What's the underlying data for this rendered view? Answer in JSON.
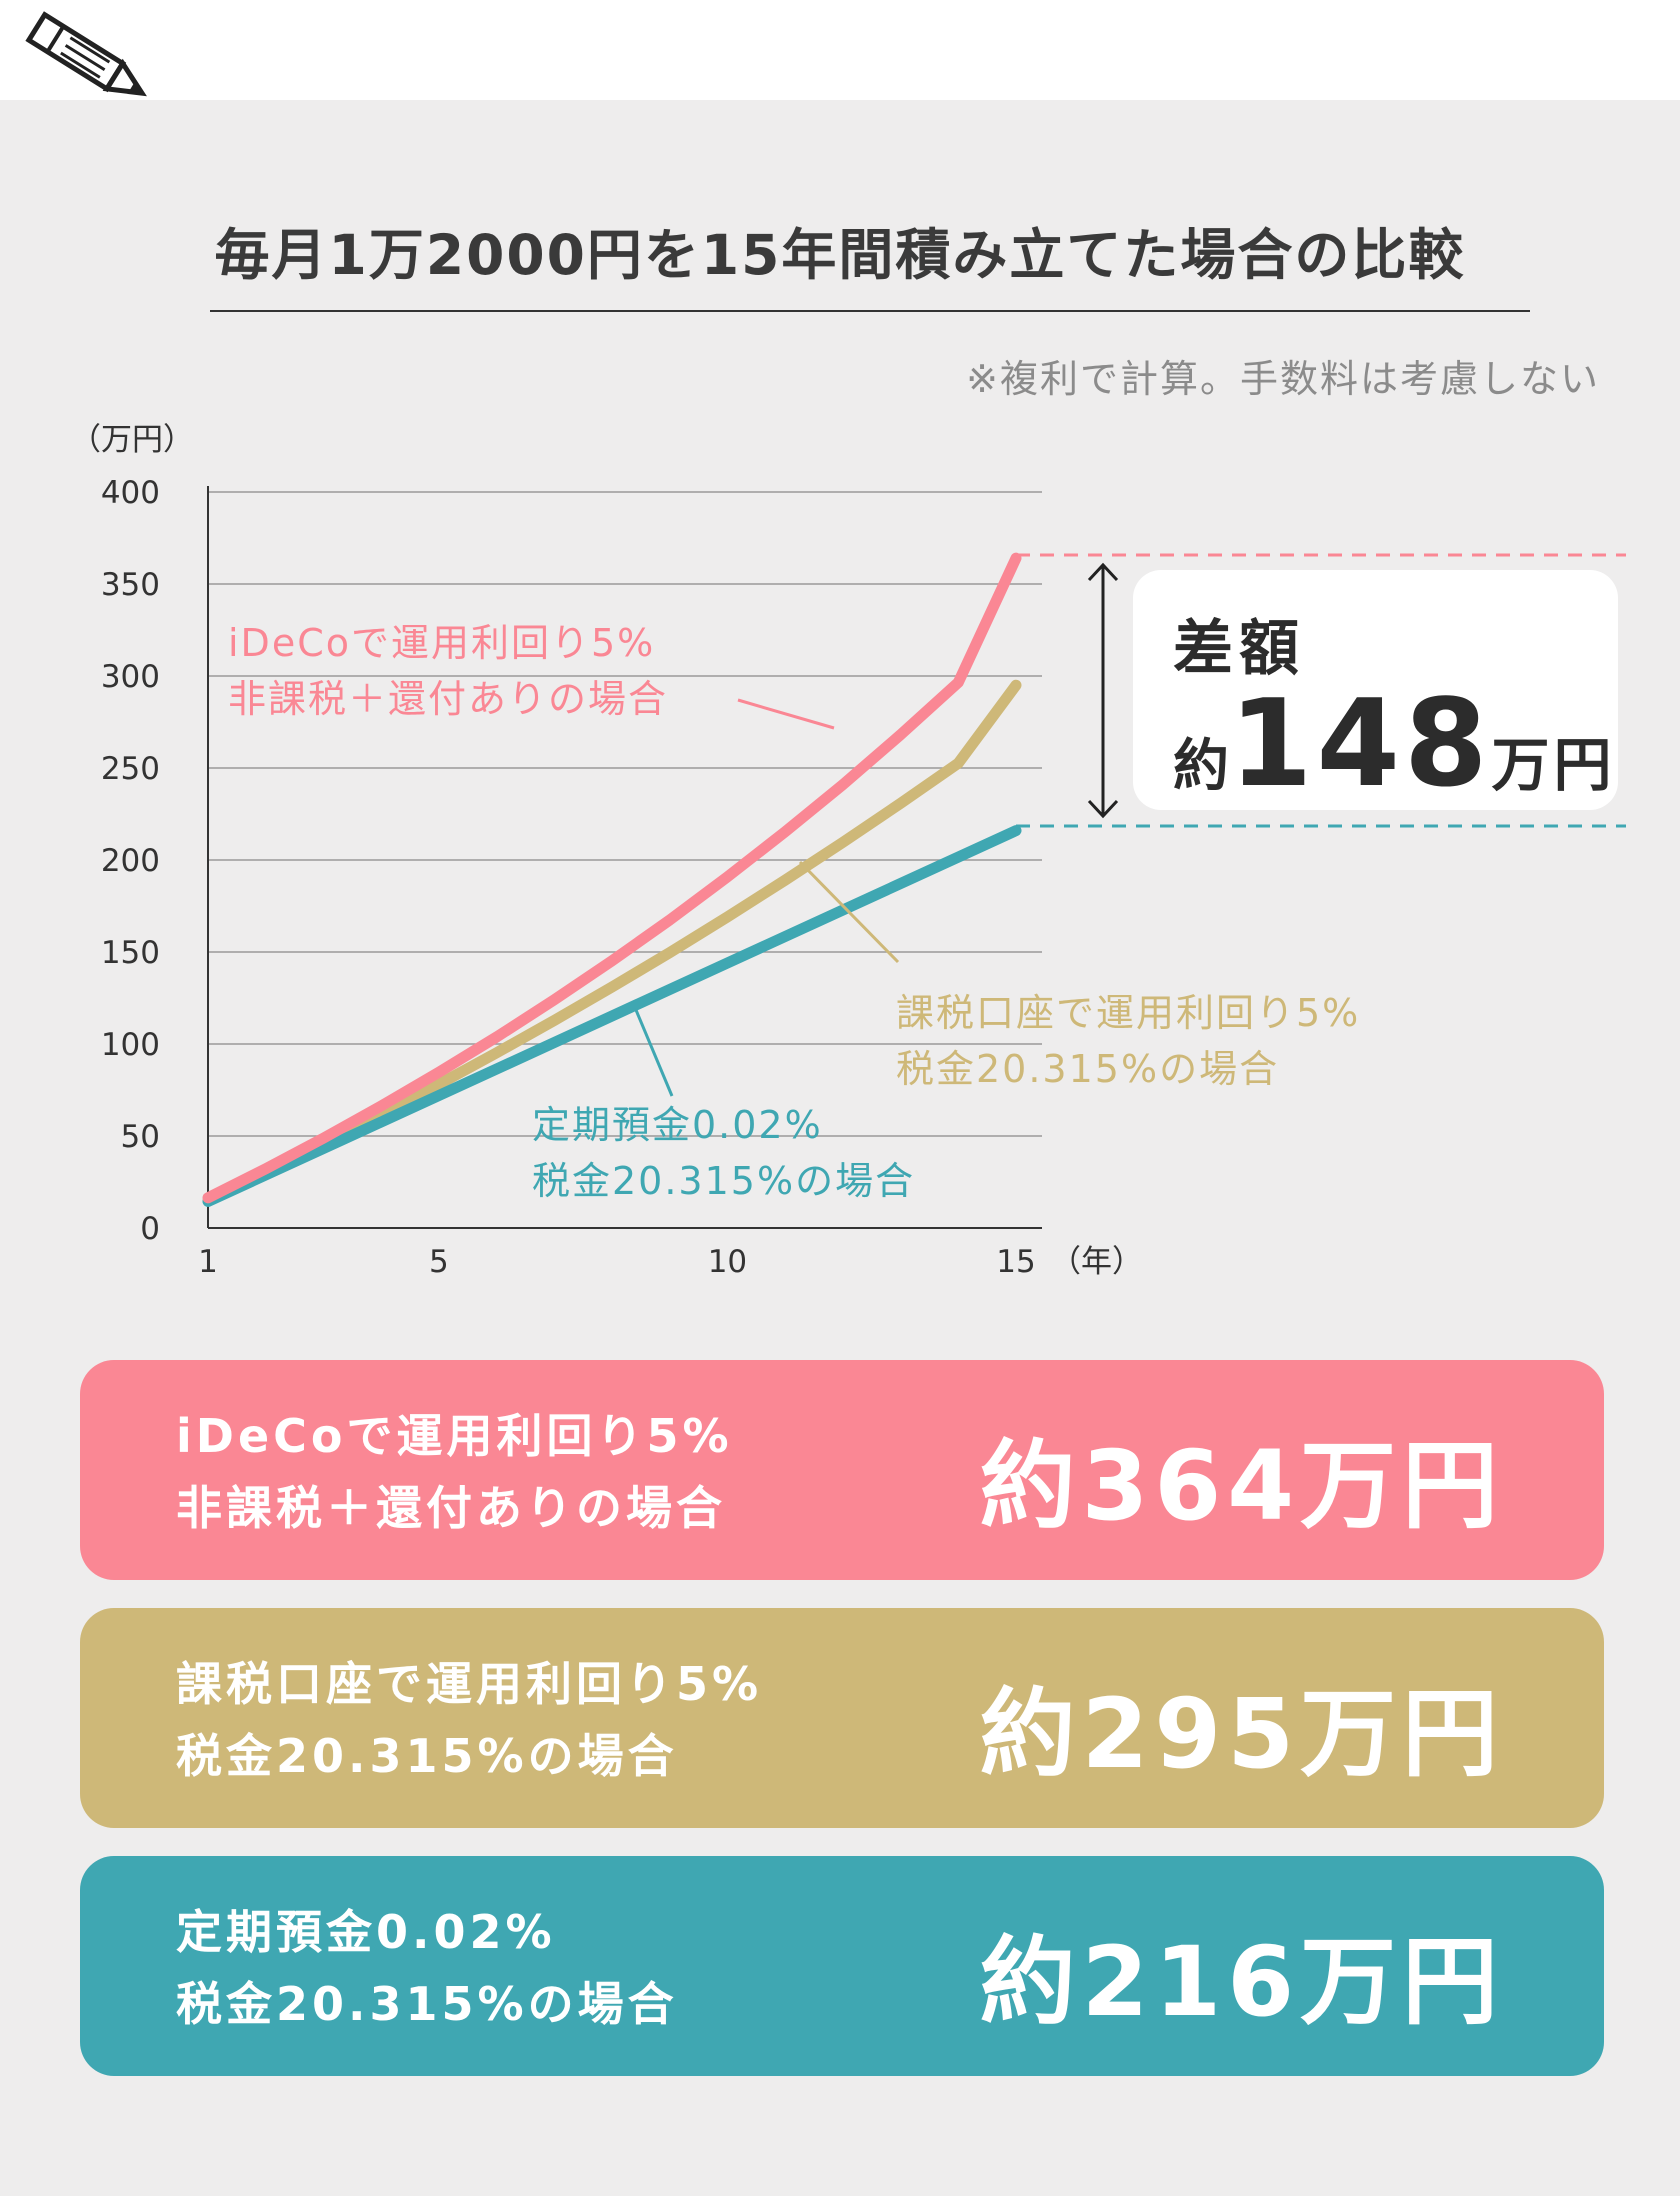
{
  "title": "毎月1万2000円を15年間積み立てた場合の比較",
  "note": "※複利で計算。手数料は考慮しない",
  "colors": {
    "pink": "#fa8794",
    "gold": "#ceb878",
    "teal": "#3fa7b2",
    "background": "#eeeded"
  },
  "chart_data": {
    "type": "line",
    "y_unit_label": "（万円）",
    "x_unit_label": "（年）",
    "x_ticks": [
      "1",
      "5",
      "10",
      "15"
    ],
    "y_ticks": [
      "0",
      "50",
      "100",
      "150",
      "200",
      "250",
      "300",
      "350",
      "400"
    ],
    "xlim": [
      1,
      15
    ],
    "ylim": [
      0,
      400
    ],
    "grid": true,
    "series": [
      {
        "key": "pink",
        "line1": "iDeCoで運用利回り5%",
        "line2": "非課税＋還付ありの場合",
        "x": [
          1,
          2,
          3,
          4,
          5,
          6,
          7,
          8,
          9,
          10,
          11,
          12,
          13,
          14,
          15
        ],
        "values": [
          16.4,
          32.2,
          48.8,
          66.3,
          84.6,
          103.8,
          124,
          145.2,
          167.4,
          190.8,
          215.3,
          241,
          268.1,
          296.5,
          364
        ]
      },
      {
        "key": "gold",
        "line1": "課税口座で運用利回り5%",
        "line2": "税金20.315%の場合",
        "x": [
          1,
          2,
          3,
          4,
          5,
          6,
          7,
          8,
          9,
          10,
          11,
          12,
          13,
          14,
          15
        ],
        "values": [
          14.7,
          29.8,
          45.4,
          61.5,
          78.1,
          95.2,
          112.8,
          131,
          149.7,
          169.1,
          189,
          209.6,
          230.8,
          252.6,
          295
        ]
      },
      {
        "key": "teal",
        "line1": "定期預金0.02%",
        "line2": "税金20.315%の場合",
        "x": [
          1,
          5,
          10,
          15
        ],
        "values": [
          14.4,
          72,
          144,
          216
        ]
      }
    ],
    "difference": {
      "heading": "差額",
      "prefix": "約",
      "value": "148",
      "suffix": "万円"
    }
  },
  "summary": [
    {
      "line1": "iDeCoで運用利回り5%",
      "line2": "非課税＋還付ありの場合",
      "amount": "約364万円"
    },
    {
      "line1": "課税口座で運用利回り5%",
      "line2": "税金20.315%の場合",
      "amount": "約295万円"
    },
    {
      "line1": "定期預金0.02%",
      "line2": "税金20.315%の場合",
      "amount": "約216万円"
    }
  ]
}
